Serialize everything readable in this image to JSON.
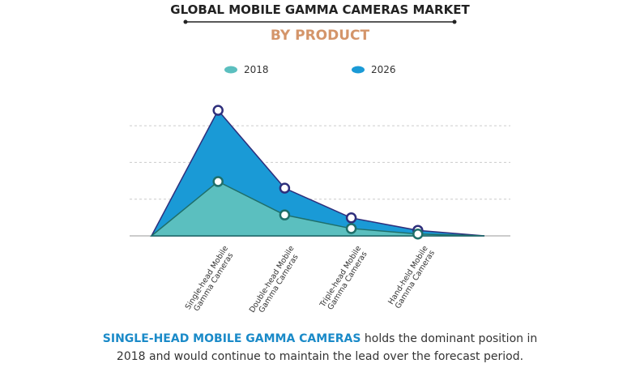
{
  "chart_data": {
    "type": "area",
    "title": "GLOBAL MOBILE GAMMA CAMERAS MARKET",
    "subtitle": "BY PRODUCT",
    "categories": [
      null,
      "Single-head Mobile\nGamma Cameras",
      "Double-head Mobile\nGamma Cameras",
      "Triple-head Mobile\nGamma Cameras",
      "Hand-held Mobile\nGamma Cameras",
      null
    ],
    "series": [
      {
        "name": "2026",
        "color": "#1a9ad6",
        "values": [
          0,
          3.42,
          1.3,
          0.49,
          0.15,
          0
        ]
      },
      {
        "name": "2018",
        "color": "#5bbfbf",
        "values": [
          0,
          1.48,
          0.57,
          0.2,
          0.05,
          0
        ]
      }
    ],
    "ylim": [
      0,
      3.5
    ],
    "yticks": [
      0,
      1,
      2,
      3
    ],
    "grid": true
  },
  "footer": {
    "highlight": "SINGLE-HEAD MOBILE GAMMA CAMERAS",
    "text": "holds the dominant position in 2018 and would continue to maintain the lead over the forecast period."
  }
}
